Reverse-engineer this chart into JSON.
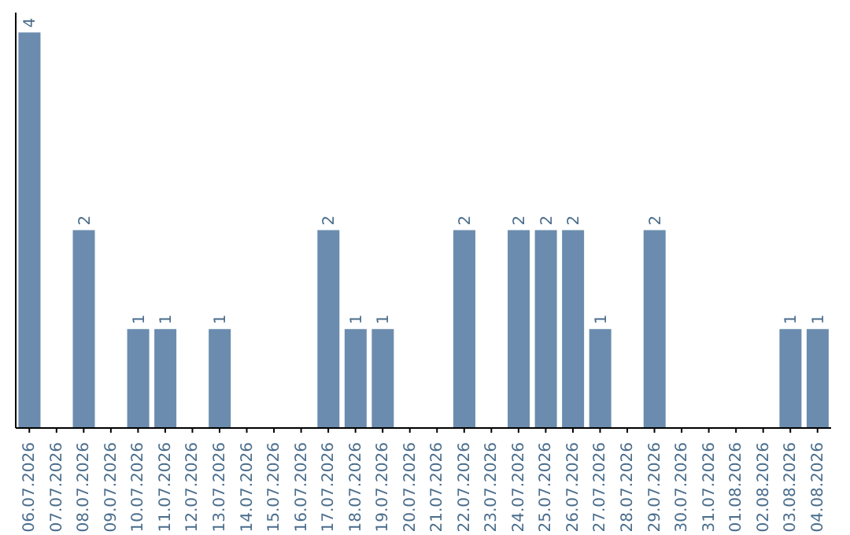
{
  "chart_data": {
    "type": "bar",
    "categories": [
      "06.07.2026",
      "07.07.2026",
      "08.07.2026",
      "09.07.2026",
      "10.07.2026",
      "11.07.2026",
      "12.07.2026",
      "13.07.2026",
      "14.07.2026",
      "15.07.2026",
      "16.07.2026",
      "17.07.2026",
      "18.07.2026",
      "19.07.2026",
      "20.07.2026",
      "21.07.2026",
      "22.07.2026",
      "23.07.2026",
      "24.07.2026",
      "25.07.2026",
      "26.07.2026",
      "27.07.2026",
      "28.07.2026",
      "29.07.2026",
      "30.07.2026",
      "31.07.2026",
      "01.08.2026",
      "02.08.2026",
      "03.08.2026",
      "04.08.2026"
    ],
    "values": [
      4,
      0,
      2,
      0,
      1,
      1,
      0,
      1,
      0,
      0,
      0,
      2,
      1,
      1,
      0,
      0,
      2,
      0,
      2,
      2,
      2,
      1,
      0,
      2,
      0,
      0,
      0,
      0,
      1,
      1
    ],
    "value_labels": [
      "4",
      null,
      "2",
      null,
      "1",
      "1",
      null,
      "1",
      null,
      null,
      null,
      "2",
      "1",
      "1",
      null,
      null,
      "2",
      null,
      "2",
      "2",
      "2",
      "1",
      null,
      "2",
      null,
      null,
      null,
      null,
      "1",
      "1"
    ],
    "color": "#6b8cae",
    "tick_labels": "x"
  }
}
